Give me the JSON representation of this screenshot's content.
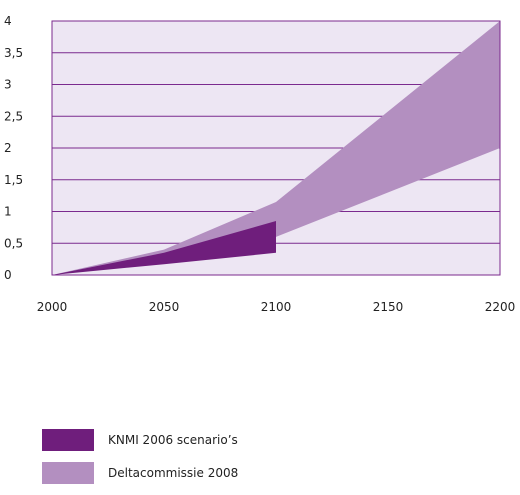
{
  "chart_data": {
    "type": "area",
    "title": "",
    "xlabel": "",
    "ylabel": "",
    "xlim": [
      2000,
      2200
    ],
    "ylim": [
      0,
      4
    ],
    "x_ticks": [
      "2000",
      "2050",
      "2100",
      "2150",
      "2200"
    ],
    "y_ticks": [
      "0",
      "0,5",
      "1",
      "1,5",
      "2",
      "2,5",
      "3",
      "3,5",
      "4"
    ],
    "grid": true,
    "plot_background": "#ede6f3",
    "grid_color": "#7b2a8e",
    "series": [
      {
        "name": "Deltacommissie 2008",
        "color": "#b38fc0",
        "upper": [
          {
            "x": 2000,
            "y": 0
          },
          {
            "x": 2050,
            "y": 0.4
          },
          {
            "x": 2100,
            "y": 1.15
          },
          {
            "x": 2200,
            "y": 4.0
          }
        ],
        "lower": [
          {
            "x": 2000,
            "y": 0
          },
          {
            "x": 2050,
            "y": 0.2
          },
          {
            "x": 2100,
            "y": 0.6
          },
          {
            "x": 2200,
            "y": 2.0
          }
        ]
      },
      {
        "name": "KNMI 2006 scenario’s",
        "color": "#6f1e7c",
        "upper": [
          {
            "x": 2000,
            "y": 0
          },
          {
            "x": 2050,
            "y": 0.35
          },
          {
            "x": 2100,
            "y": 0.85
          }
        ],
        "lower": [
          {
            "x": 2000,
            "y": 0
          },
          {
            "x": 2050,
            "y": 0.17
          },
          {
            "x": 2100,
            "y": 0.35
          }
        ]
      }
    ],
    "legend": [
      {
        "label": "KNMI 2006 scenario’s",
        "color": "#6f1e7c"
      },
      {
        "label": "Deltacommissie 2008",
        "color": "#b38fc0"
      }
    ],
    "legend_position": "bottom-left"
  }
}
